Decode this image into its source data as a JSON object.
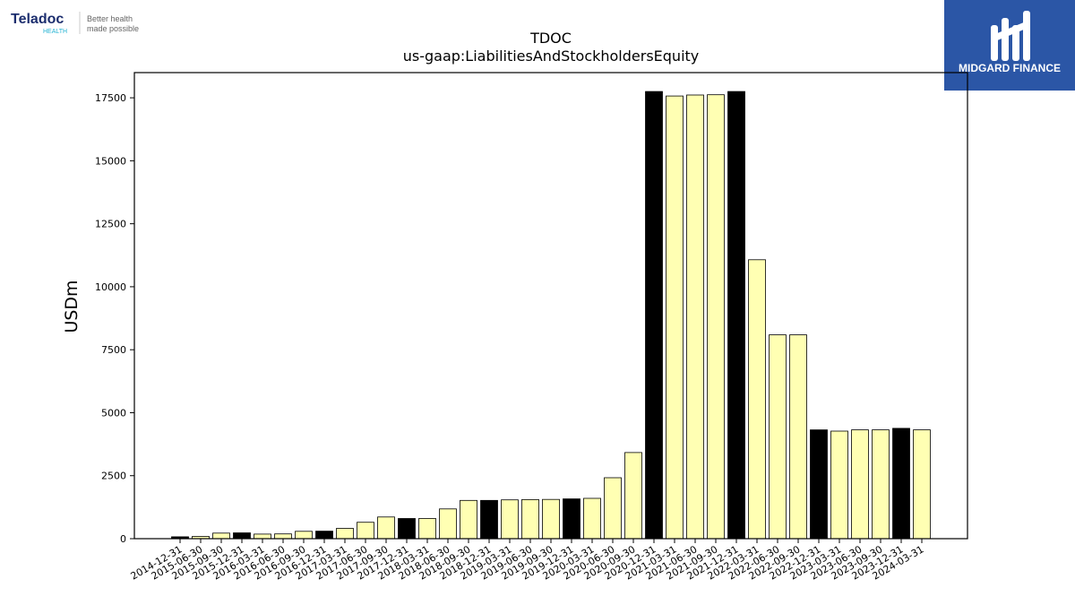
{
  "branding": {
    "left_logo": {
      "name": "Teladoc",
      "sub": "HEALTH",
      "tagline_1": "Better health",
      "tagline_2": "made possible",
      "colors": {
        "name": "#1c2e6e",
        "sub": "#21b2d2"
      }
    },
    "right_logo": {
      "text": "MIDGARD FINANCE",
      "background": "#2b56a6"
    }
  },
  "chart_data": {
    "type": "bar",
    "title": "TDOC",
    "subtitle": "us-gaap:LiabilitiesAndStockholdersEquity",
    "ylabel": "USDm",
    "xlabel": "",
    "ylim": [
      0,
      18500
    ],
    "yticks": [
      0,
      2500,
      5000,
      7500,
      10000,
      12500,
      15000,
      17500
    ],
    "grid": false,
    "colors": {
      "quarter": "#ffffb3",
      "year_end": "#000000",
      "edge": "#000000"
    },
    "categories": [
      "2014-12-31",
      "2015-06-30",
      "2015-09-30",
      "2015-12-31",
      "2016-03-31",
      "2016-06-30",
      "2016-09-30",
      "2016-12-31",
      "2017-03-31",
      "2017-06-30",
      "2017-09-30",
      "2017-12-31",
      "2018-03-31",
      "2018-06-30",
      "2018-09-30",
      "2018-12-31",
      "2019-03-31",
      "2019-06-30",
      "2019-09-30",
      "2019-12-31",
      "2020-03-31",
      "2020-06-30",
      "2020-09-30",
      "2020-12-31",
      "2021-03-31",
      "2021-06-30",
      "2021-09-30",
      "2021-12-31",
      "2022-03-31",
      "2022-06-30",
      "2022-09-30",
      "2022-12-31",
      "2023-03-31",
      "2023-06-30",
      "2023-09-30",
      "2023-12-31",
      "2024-03-31"
    ],
    "values": [
      75,
      90,
      220,
      230,
      180,
      190,
      290,
      300,
      410,
      650,
      860,
      800,
      800,
      1180,
      1520,
      1520,
      1540,
      1550,
      1560,
      1580,
      1600,
      2420,
      3420,
      17750,
      17570,
      17610,
      17620,
      17750,
      11070,
      8090,
      8090,
      4320,
      4270,
      4320,
      4320,
      4380,
      4320
    ],
    "year_end": [
      true,
      false,
      false,
      true,
      false,
      false,
      false,
      true,
      false,
      false,
      false,
      true,
      false,
      false,
      false,
      true,
      false,
      false,
      false,
      true,
      false,
      false,
      false,
      true,
      false,
      false,
      false,
      true,
      false,
      false,
      false,
      true,
      false,
      false,
      false,
      true,
      false
    ]
  }
}
